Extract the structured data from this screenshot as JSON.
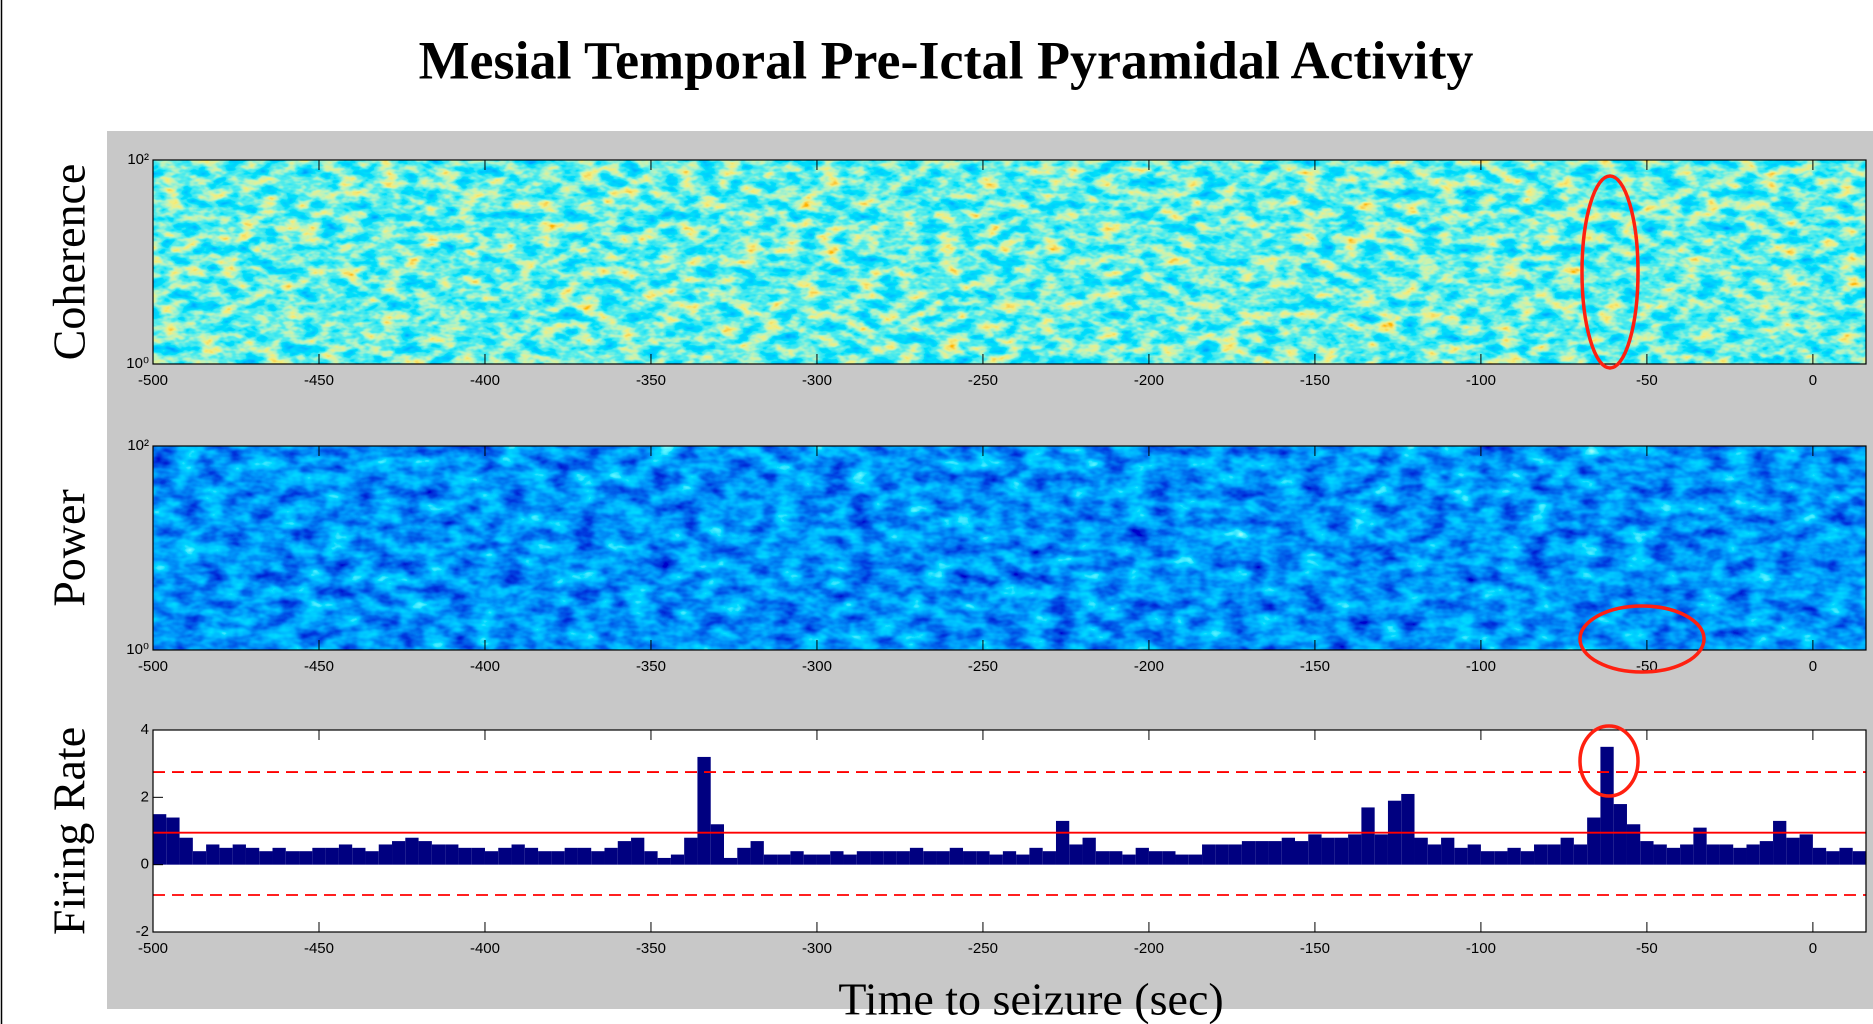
{
  "title": "Mesial Temporal Pre-Ictal Pyramidal Activity",
  "chart_data": [
    {
      "type": "heatmap",
      "ylabel": "Coherence",
      "colormap": "jet",
      "log_scale": true,
      "xlim": [
        -500,
        16
      ],
      "xticks": [
        -500,
        -450,
        -400,
        -350,
        -300,
        -250,
        -200,
        -150,
        -100,
        -50,
        0
      ],
      "ylim": [
        1,
        100
      ],
      "yticks": [
        {
          "value": 1,
          "label": "10⁰"
        },
        {
          "value": 100,
          "label": "10²"
        }
      ]
    },
    {
      "type": "heatmap",
      "ylabel": "Power",
      "colormap": "jet",
      "log_scale": true,
      "xlim": [
        -500,
        16
      ],
      "xticks": [
        -500,
        -450,
        -400,
        -350,
        -300,
        -250,
        -200,
        -150,
        -100,
        -50,
        0
      ],
      "ylim": [
        1,
        100
      ],
      "yticks": [
        {
          "value": 1,
          "label": "10⁰"
        },
        {
          "value": 100,
          "label": "10²"
        }
      ]
    },
    {
      "type": "histogram",
      "ylabel": "Firing Rate",
      "xlabel": "Time to seizure (sec)",
      "color": "#000080",
      "xlim": [
        -500,
        16
      ],
      "xticks": [
        -500,
        -450,
        -400,
        -350,
        -300,
        -250,
        -200,
        -150,
        -100,
        -50,
        0
      ],
      "ylim": [
        -2,
        4
      ],
      "yticks": [
        -2,
        0,
        2,
        4
      ],
      "hlines": [
        {
          "value": 0.95,
          "style": "solid",
          "color": "#ff0000"
        },
        {
          "value": 2.75,
          "style": "dashed",
          "color": "#ff0000"
        },
        {
          "value": -0.9,
          "style": "dashed",
          "color": "#ff0000"
        }
      ],
      "bins": [
        -500,
        -496,
        -492,
        -488,
        -484,
        -480,
        -476,
        -472,
        -468,
        -464,
        -460,
        -456,
        -452,
        -448,
        -444,
        -440,
        -436,
        -432,
        -428,
        -424,
        -420,
        -416,
        -412,
        -408,
        -404,
        -400,
        -396,
        -392,
        -388,
        -384,
        -380,
        -376,
        -372,
        -368,
        -364,
        -360,
        -356,
        -352,
        -348,
        -344,
        -340,
        -336,
        -332,
        -328,
        -324,
        -320,
        -316,
        -312,
        -308,
        -304,
        -300,
        -296,
        -292,
        -288,
        -284,
        -280,
        -276,
        -272,
        -268,
        -264,
        -260,
        -256,
        -252,
        -248,
        -244,
        -240,
        -236,
        -232,
        -228,
        -224,
        -220,
        -216,
        -212,
        -208,
        -204,
        -200,
        -196,
        -192,
        -188,
        -184,
        -180,
        -176,
        -172,
        -168,
        -164,
        -160,
        -156,
        -152,
        -148,
        -144,
        -140,
        -136,
        -132,
        -128,
        -124,
        -120,
        -116,
        -112,
        -108,
        -104,
        -100,
        -96,
        -92,
        -88,
        -84,
        -80,
        -76,
        -72,
        -68,
        -64,
        -60,
        -56,
        -52,
        -48,
        -44,
        -40,
        -36,
        -32,
        -28,
        -24,
        -20,
        -16,
        -12,
        -8,
        -4,
        0,
        4,
        8,
        12,
        16
      ],
      "values": [
        1.5,
        1.4,
        0.8,
        0.4,
        0.6,
        0.5,
        0.6,
        0.5,
        0.4,
        0.5,
        0.4,
        0.4,
        0.5,
        0.5,
        0.6,
        0.5,
        0.4,
        0.6,
        0.7,
        0.8,
        0.7,
        0.6,
        0.6,
        0.5,
        0.5,
        0.4,
        0.5,
        0.6,
        0.5,
        0.4,
        0.4,
        0.5,
        0.5,
        0.4,
        0.5,
        0.7,
        0.8,
        0.4,
        0.2,
        0.3,
        0.8,
        3.2,
        1.2,
        0.2,
        0.5,
        0.7,
        0.3,
        0.3,
        0.4,
        0.3,
        0.3,
        0.4,
        0.3,
        0.4,
        0.4,
        0.4,
        0.4,
        0.5,
        0.4,
        0.4,
        0.5,
        0.4,
        0.4,
        0.3,
        0.4,
        0.3,
        0.5,
        0.4,
        1.3,
        0.6,
        0.8,
        0.4,
        0.4,
        0.3,
        0.5,
        0.4,
        0.4,
        0.3,
        0.3,
        0.6,
        0.6,
        0.6,
        0.7,
        0.7,
        0.7,
        0.8,
        0.7,
        0.9,
        0.8,
        0.8,
        0.9,
        1.7,
        0.9,
        1.9,
        2.1,
        0.8,
        0.6,
        0.8,
        0.5,
        0.6,
        0.4,
        0.4,
        0.5,
        0.4,
        0.6,
        0.6,
        0.8,
        0.6,
        1.4,
        3.5,
        1.8,
        1.2,
        0.7,
        0.6,
        0.5,
        0.6,
        1.1,
        0.6,
        0.6,
        0.5,
        0.6,
        0.7,
        1.3,
        0.8,
        0.9,
        0.5,
        0.4,
        0.5,
        0.4
      ]
    }
  ]
}
